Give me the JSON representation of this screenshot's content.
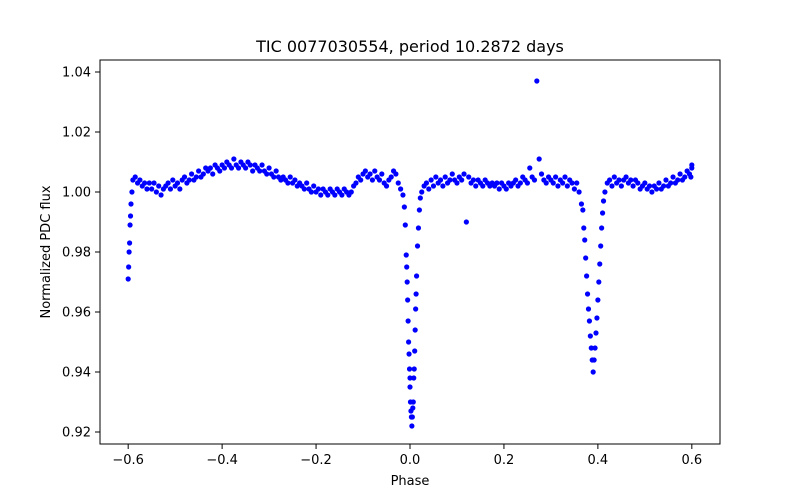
{
  "chart_data": {
    "type": "scatter",
    "title": "TIC 0077030554, period 10.2872 days",
    "xlabel": "Phase",
    "ylabel": "Normalized PDC flux",
    "xlim": [
      -0.66,
      0.66
    ],
    "ylim": [
      0.916,
      1.044
    ],
    "xticks": [
      -0.6,
      -0.4,
      -0.2,
      0.0,
      0.2,
      0.4,
      0.6
    ],
    "xtick_labels": [
      "−0.6",
      "−0.4",
      "−0.2",
      "0.0",
      "0.2",
      "0.4",
      "0.6"
    ],
    "yticks": [
      0.92,
      0.94,
      0.96,
      0.98,
      1.0,
      1.02,
      1.04
    ],
    "ytick_labels": [
      "0.92",
      "0.94",
      "0.96",
      "0.98",
      "1.00",
      "1.02",
      "1.04"
    ],
    "grid": false,
    "marker_color": "#0000ff",
    "series": [
      {
        "name": "flux",
        "points": [
          [
            -0.6,
            0.971
          ],
          [
            -0.599,
            0.975
          ],
          [
            -0.598,
            0.98
          ],
          [
            -0.597,
            0.983
          ],
          [
            -0.596,
            0.989
          ],
          [
            -0.595,
            0.992
          ],
          [
            -0.594,
            0.996
          ],
          [
            -0.592,
            1.0
          ],
          [
            -0.59,
            1.004
          ],
          [
            -0.585,
            1.005
          ],
          [
            -0.58,
            1.003
          ],
          [
            -0.575,
            1.004
          ],
          [
            -0.57,
            1.002
          ],
          [
            -0.565,
            1.003
          ],
          [
            -0.56,
            1.001
          ],
          [
            -0.555,
            1.003
          ],
          [
            -0.55,
            1.001
          ],
          [
            -0.545,
            1.003
          ],
          [
            -0.54,
            1.0
          ],
          [
            -0.535,
            1.002
          ],
          [
            -0.53,
            0.999
          ],
          [
            -0.525,
            1.001
          ],
          [
            -0.52,
            1.002
          ],
          [
            -0.515,
            1.003
          ],
          [
            -0.51,
            1.001
          ],
          [
            -0.505,
            1.004
          ],
          [
            -0.5,
            1.002
          ],
          [
            -0.495,
            1.003
          ],
          [
            -0.49,
            1.001
          ],
          [
            -0.485,
            1.004
          ],
          [
            -0.48,
            1.005
          ],
          [
            -0.475,
            1.003
          ],
          [
            -0.47,
            1.004
          ],
          [
            -0.465,
            1.006
          ],
          [
            -0.46,
            1.004
          ],
          [
            -0.455,
            1.005
          ],
          [
            -0.45,
            1.007
          ],
          [
            -0.445,
            1.005
          ],
          [
            -0.44,
            1.006
          ],
          [
            -0.435,
            1.008
          ],
          [
            -0.43,
            1.007
          ],
          [
            -0.425,
            1.008
          ],
          [
            -0.42,
            1.006
          ],
          [
            -0.415,
            1.009
          ],
          [
            -0.41,
            1.008
          ],
          [
            -0.405,
            1.007
          ],
          [
            -0.4,
            1.009
          ],
          [
            -0.395,
            1.008
          ],
          [
            -0.39,
            1.01
          ],
          [
            -0.385,
            1.009
          ],
          [
            -0.38,
            1.008
          ],
          [
            -0.375,
            1.011
          ],
          [
            -0.37,
            1.009
          ],
          [
            -0.365,
            1.008
          ],
          [
            -0.36,
            1.01
          ],
          [
            -0.355,
            1.009
          ],
          [
            -0.35,
            1.008
          ],
          [
            -0.345,
            1.01
          ],
          [
            -0.34,
            1.009
          ],
          [
            -0.335,
            1.007
          ],
          [
            -0.33,
            1.009
          ],
          [
            -0.325,
            1.008
          ],
          [
            -0.32,
            1.007
          ],
          [
            -0.315,
            1.009
          ],
          [
            -0.31,
            1.007
          ],
          [
            -0.305,
            1.006
          ],
          [
            -0.3,
            1.008
          ],
          [
            -0.295,
            1.006
          ],
          [
            -0.29,
            1.005
          ],
          [
            -0.285,
            1.007
          ],
          [
            -0.28,
            1.005
          ],
          [
            -0.275,
            1.004
          ],
          [
            -0.27,
            1.005
          ],
          [
            -0.265,
            1.004
          ],
          [
            -0.26,
            1.003
          ],
          [
            -0.255,
            1.005
          ],
          [
            -0.25,
            1.003
          ],
          [
            -0.245,
            1.004
          ],
          [
            -0.24,
            1.002
          ],
          [
            -0.235,
            1.003
          ],
          [
            -0.23,
            1.002
          ],
          [
            -0.225,
            1.001
          ],
          [
            -0.22,
            1.003
          ],
          [
            -0.215,
            1.001
          ],
          [
            -0.21,
            1.0
          ],
          [
            -0.205,
            1.002
          ],
          [
            -0.2,
            1.0
          ],
          [
            -0.195,
            1.001
          ],
          [
            -0.19,
            0.999
          ],
          [
            -0.185,
            1.001
          ],
          [
            -0.18,
            1.0
          ],
          [
            -0.175,
            0.999
          ],
          [
            -0.17,
            1.001
          ],
          [
            -0.165,
            1.0
          ],
          [
            -0.16,
            0.999
          ],
          [
            -0.155,
            1.001
          ],
          [
            -0.15,
            1.0
          ],
          [
            -0.145,
            0.999
          ],
          [
            -0.14,
            1.001
          ],
          [
            -0.135,
            1.0
          ],
          [
            -0.13,
            0.999
          ],
          [
            -0.125,
            1.0
          ],
          [
            -0.12,
            1.002
          ],
          [
            -0.115,
            1.003
          ],
          [
            -0.11,
            1.005
          ],
          [
            -0.105,
            1.004
          ],
          [
            -0.1,
            1.006
          ],
          [
            -0.095,
            1.007
          ],
          [
            -0.09,
            1.005
          ],
          [
            -0.085,
            1.006
          ],
          [
            -0.08,
            1.004
          ],
          [
            -0.075,
            1.007
          ],
          [
            -0.07,
            1.005
          ],
          [
            -0.065,
            1.004
          ],
          [
            -0.06,
            1.006
          ],
          [
            -0.055,
            1.003
          ],
          [
            -0.05,
            1.002
          ],
          [
            -0.045,
            1.004
          ],
          [
            -0.04,
            1.005
          ],
          [
            -0.035,
            1.007
          ],
          [
            -0.03,
            1.006
          ],
          [
            -0.025,
            1.003
          ],
          [
            -0.02,
            1.001
          ],
          [
            -0.015,
            0.999
          ],
          [
            -0.012,
            0.995
          ],
          [
            -0.01,
            0.989
          ],
          [
            -0.008,
            0.979
          ],
          [
            -0.007,
            0.975
          ],
          [
            -0.006,
            0.97
          ],
          [
            -0.005,
            0.964
          ],
          [
            -0.004,
            0.957
          ],
          [
            -0.003,
            0.95
          ],
          [
            -0.002,
            0.946
          ],
          [
            -0.001,
            0.941
          ],
          [
            0.0,
            0.938
          ],
          [
            0.0,
            0.935
          ],
          [
            0.001,
            0.93
          ],
          [
            0.002,
            0.927
          ],
          [
            0.003,
            0.925
          ],
          [
            0.004,
            0.922
          ],
          [
            0.005,
            0.925
          ],
          [
            0.006,
            0.928
          ],
          [
            0.007,
            0.93
          ],
          [
            0.008,
            0.938
          ],
          [
            0.009,
            0.941
          ],
          [
            0.01,
            0.947
          ],
          [
            0.011,
            0.954
          ],
          [
            0.012,
            0.961
          ],
          [
            0.013,
            0.966
          ],
          [
            0.014,
            0.972
          ],
          [
            0.016,
            0.982
          ],
          [
            0.018,
            0.988
          ],
          [
            0.02,
            0.994
          ],
          [
            0.022,
            0.998
          ],
          [
            0.025,
            1.0
          ],
          [
            0.03,
            1.002
          ],
          [
            0.035,
            1.003
          ],
          [
            0.04,
            1.001
          ],
          [
            0.045,
            1.004
          ],
          [
            0.05,
            1.002
          ],
          [
            0.055,
            1.005
          ],
          [
            0.06,
            1.003
          ],
          [
            0.065,
            1.004
          ],
          [
            0.07,
            1.002
          ],
          [
            0.075,
            1.005
          ],
          [
            0.08,
            1.003
          ],
          [
            0.085,
            1.004
          ],
          [
            0.09,
            1.006
          ],
          [
            0.095,
            1.004
          ],
          [
            0.1,
            1.003
          ],
          [
            0.105,
            1.005
          ],
          [
            0.11,
            1.004
          ],
          [
            0.115,
            1.006
          ],
          [
            0.12,
            0.99
          ],
          [
            0.125,
            1.005
          ],
          [
            0.13,
            1.003
          ],
          [
            0.135,
            1.004
          ],
          [
            0.14,
            1.002
          ],
          [
            0.145,
            1.004
          ],
          [
            0.15,
            1.003
          ],
          [
            0.155,
            1.002
          ],
          [
            0.16,
            1.004
          ],
          [
            0.165,
            1.003
          ],
          [
            0.17,
            1.002
          ],
          [
            0.175,
            1.003
          ],
          [
            0.18,
            1.002
          ],
          [
            0.185,
            1.003
          ],
          [
            0.19,
            1.001
          ],
          [
            0.195,
            1.003
          ],
          [
            0.2,
            1.002
          ],
          [
            0.205,
            1.001
          ],
          [
            0.21,
            1.003
          ],
          [
            0.215,
            1.002
          ],
          [
            0.22,
            1.003
          ],
          [
            0.225,
            1.004
          ],
          [
            0.23,
            1.002
          ],
          [
            0.235,
            1.003
          ],
          [
            0.24,
            1.005
          ],
          [
            0.245,
            1.004
          ],
          [
            0.25,
            1.003
          ],
          [
            0.255,
            1.008
          ],
          [
            0.26,
            1.005
          ],
          [
            0.265,
            1.004
          ],
          [
            0.27,
            1.037
          ],
          [
            0.275,
            1.011
          ],
          [
            0.28,
            1.006
          ],
          [
            0.285,
            1.004
          ],
          [
            0.29,
            1.003
          ],
          [
            0.295,
            1.005
          ],
          [
            0.3,
            1.004
          ],
          [
            0.305,
            1.003
          ],
          [
            0.31,
            1.005
          ],
          [
            0.315,
            1.002
          ],
          [
            0.32,
            1.004
          ],
          [
            0.325,
            1.003
          ],
          [
            0.33,
            1.005
          ],
          [
            0.335,
            1.002
          ],
          [
            0.34,
            1.004
          ],
          [
            0.345,
            1.003
          ],
          [
            0.35,
            1.001
          ],
          [
            0.355,
            1.003
          ],
          [
            0.36,
            1.0
          ],
          [
            0.365,
            0.996
          ],
          [
            0.368,
            0.994
          ],
          [
            0.37,
            0.988
          ],
          [
            0.372,
            0.984
          ],
          [
            0.374,
            0.978
          ],
          [
            0.376,
            0.972
          ],
          [
            0.378,
            0.966
          ],
          [
            0.38,
            0.961
          ],
          [
            0.382,
            0.957
          ],
          [
            0.384,
            0.952
          ],
          [
            0.386,
            0.948
          ],
          [
            0.388,
            0.944
          ],
          [
            0.39,
            0.94
          ],
          [
            0.392,
            0.944
          ],
          [
            0.394,
            0.948
          ],
          [
            0.396,
            0.953
          ],
          [
            0.398,
            0.958
          ],
          [
            0.4,
            0.964
          ],
          [
            0.402,
            0.97
          ],
          [
            0.404,
            0.976
          ],
          [
            0.406,
            0.982
          ],
          [
            0.408,
            0.988
          ],
          [
            0.41,
            0.993
          ],
          [
            0.412,
            0.997
          ],
          [
            0.415,
            1.0
          ],
          [
            0.42,
            1.003
          ],
          [
            0.425,
            1.004
          ],
          [
            0.43,
            1.002
          ],
          [
            0.435,
            1.005
          ],
          [
            0.44,
            1.003
          ],
          [
            0.445,
            1.004
          ],
          [
            0.45,
            1.002
          ],
          [
            0.455,
            1.004
          ],
          [
            0.46,
            1.005
          ],
          [
            0.465,
            1.003
          ],
          [
            0.47,
            1.004
          ],
          [
            0.475,
            1.002
          ],
          [
            0.48,
            1.004
          ],
          [
            0.485,
            1.003
          ],
          [
            0.49,
            1.001
          ],
          [
            0.495,
            1.002
          ],
          [
            0.5,
            1.003
          ],
          [
            0.505,
            1.001
          ],
          [
            0.51,
            1.002
          ],
          [
            0.515,
            1.0
          ],
          [
            0.52,
            1.002
          ],
          [
            0.525,
            1.001
          ],
          [
            0.53,
            1.003
          ],
          [
            0.535,
            1.001
          ],
          [
            0.54,
            1.002
          ],
          [
            0.545,
            1.004
          ],
          [
            0.55,
            1.002
          ],
          [
            0.555,
            1.003
          ],
          [
            0.56,
            1.005
          ],
          [
            0.565,
            1.003
          ],
          [
            0.57,
            1.004
          ],
          [
            0.575,
            1.006
          ],
          [
            0.58,
            1.004
          ],
          [
            0.585,
            1.005
          ],
          [
            0.59,
            1.007
          ],
          [
            0.595,
            1.006
          ],
          [
            0.6,
            1.008
          ],
          [
            0.6,
            1.009
          ],
          [
            0.598,
            1.005
          ]
        ]
      }
    ]
  }
}
